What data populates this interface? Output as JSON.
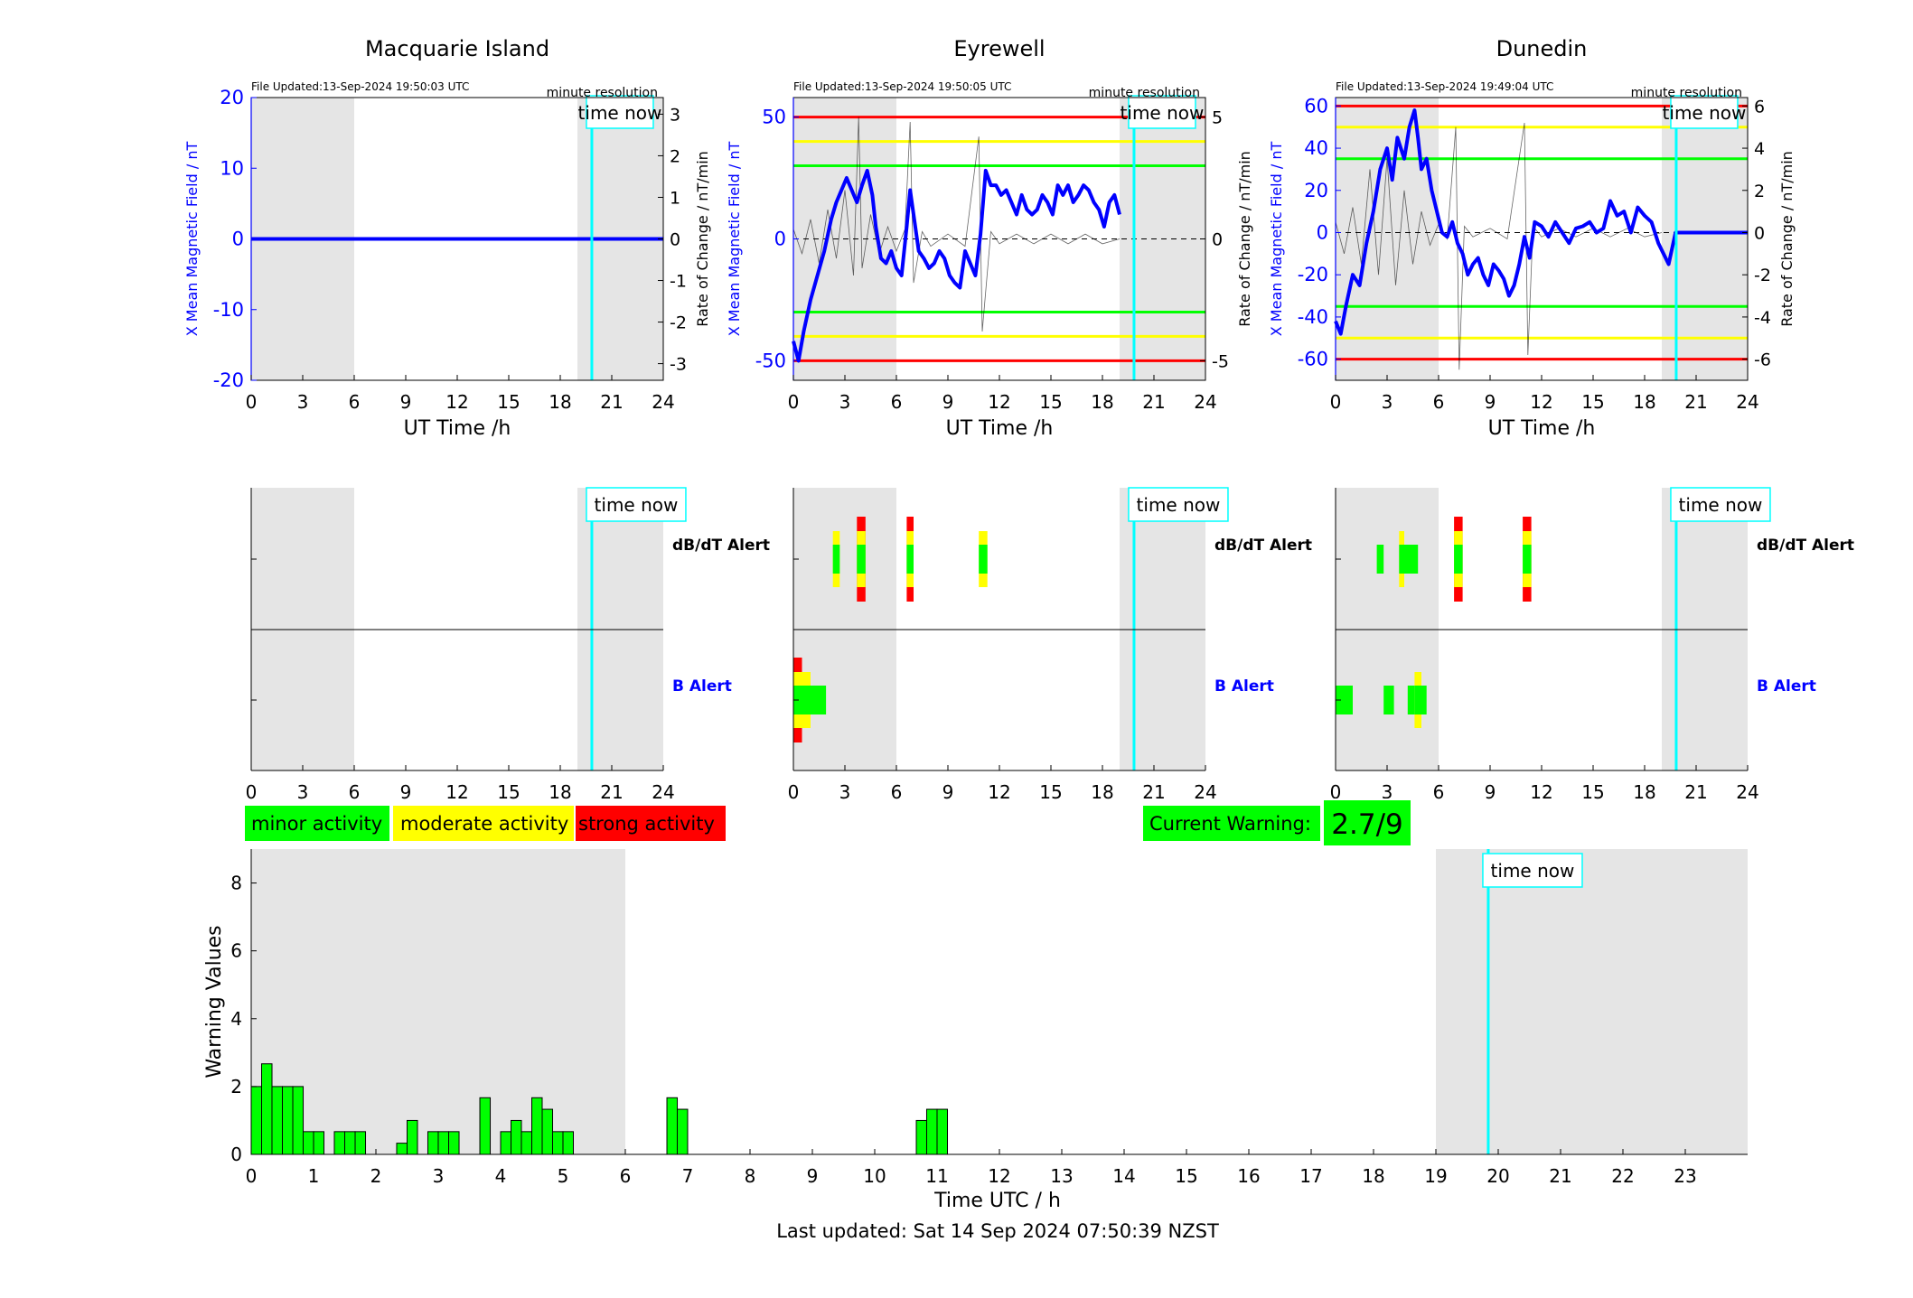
{
  "figure": {
    "footer": "Last updated: Sat 14 Sep 2024 07:50:39 NZST"
  },
  "legend": {
    "items": [
      {
        "label": "minor activity",
        "color": "#00ff00"
      },
      {
        "label": "moderate activity",
        "color": "#ffff00"
      },
      {
        "label": "strong activity",
        "color": "#ff0000"
      }
    ]
  },
  "current_warning": {
    "label": "Current Warning:",
    "value": "2.7/9",
    "color": "#00ff00"
  },
  "colors": {
    "shade": "#e5e5e5",
    "time_now": "#00ffff",
    "field_line": "#0000ff",
    "rate_line": "#000000",
    "threshold_minor": "#00ff00",
    "threshold_moderate": "#ffff00",
    "threshold_strong": "#ff0000",
    "b_alert_label": "#0000ff",
    "bar_fill": "#00ff00"
  },
  "chart_data": [
    {
      "type": "line",
      "station": "Macquarie Island",
      "file_updated": "File Updated:13-Sep-2024 19:50:03 UTC",
      "resolution": "minute resolution",
      "time_now_label": "time now",
      "time_now_hour": 19.84,
      "xlabel": "UT Time /h",
      "ylabel_left": "X Mean Magnetic Field / nT",
      "ylabel_right": "Rate of Change / nT/min",
      "xlim": [
        0,
        24
      ],
      "xticks": [
        0,
        3,
        6,
        9,
        12,
        15,
        18,
        21,
        24
      ],
      "ylim_left": [
        -20,
        20
      ],
      "yticks_left": [
        -20,
        -10,
        0,
        10,
        20
      ],
      "ylim_right": [
        -3.4,
        3.4
      ],
      "yticks_right": [
        -3,
        -2,
        -1,
        0,
        1,
        2,
        3
      ],
      "night_shading": [
        [
          0,
          6
        ],
        [
          19,
          24
        ]
      ],
      "thresholds": [],
      "field_series": {
        "x": [
          0,
          24
        ],
        "y": [
          0,
          0
        ]
      },
      "rate_series": {
        "x": [
          0,
          24
        ],
        "y": [
          0,
          0
        ]
      }
    },
    {
      "type": "line",
      "station": "Eyrewell",
      "file_updated": "File Updated:13-Sep-2024 19:50:05 UTC",
      "resolution": "minute resolution",
      "time_now_label": "time now",
      "time_now_hour": 19.84,
      "xlabel": "UT Time /h",
      "ylabel_left": "X Mean Magnetic Field / nT",
      "ylabel_right": "Rate of Change / nT/min",
      "xlim": [
        0,
        24
      ],
      "xticks": [
        0,
        3,
        6,
        9,
        12,
        15,
        18,
        21,
        24
      ],
      "ylim_left": [
        -58,
        58
      ],
      "yticks_left": [
        -50,
        0,
        50
      ],
      "ylim_right": [
        -5.8,
        5.8
      ],
      "yticks_right": [
        -5,
        0,
        5
      ],
      "night_shading": [
        [
          0,
          6
        ],
        [
          19,
          24
        ]
      ],
      "thresholds": [
        {
          "value": 50,
          "level": "strong"
        },
        {
          "value": -50,
          "level": "strong"
        },
        {
          "value": 40,
          "level": "moderate"
        },
        {
          "value": -40,
          "level": "moderate"
        },
        {
          "value": 30,
          "level": "minor"
        },
        {
          "value": -30,
          "level": "minor"
        }
      ],
      "field_series": {
        "x": [
          0,
          0.3,
          0.6,
          1.0,
          1.4,
          1.8,
          2.2,
          2.5,
          2.8,
          3.1,
          3.4,
          3.7,
          4.0,
          4.3,
          4.6,
          4.8,
          5.1,
          5.4,
          5.7,
          6.0,
          6.3,
          6.6,
          6.8,
          7.0,
          7.3,
          7.6,
          7.9,
          8.2,
          8.5,
          8.8,
          9.1,
          9.4,
          9.7,
          10.0,
          10.3,
          10.6,
          10.9,
          11.2,
          11.5,
          11.8,
          12.1,
          12.4,
          12.7,
          13.0,
          13.3,
          13.6,
          13.9,
          14.2,
          14.5,
          14.8,
          15.1,
          15.4,
          15.7,
          16.0,
          16.3,
          16.6,
          16.9,
          17.2,
          17.5,
          17.8,
          18.1,
          18.4,
          18.7,
          19.0
        ],
        "y": [
          -42,
          -50,
          -38,
          -25,
          -15,
          -5,
          8,
          15,
          20,
          25,
          20,
          15,
          22,
          28,
          18,
          5,
          -8,
          -10,
          -5,
          -12,
          -15,
          5,
          20,
          10,
          -5,
          -8,
          -12,
          -10,
          -5,
          -8,
          -15,
          -18,
          -20,
          -5,
          -10,
          -15,
          2,
          28,
          22,
          22,
          18,
          20,
          15,
          10,
          18,
          12,
          10,
          12,
          18,
          15,
          10,
          22,
          18,
          22,
          15,
          18,
          22,
          20,
          15,
          12,
          5,
          15,
          18,
          10
        ]
      },
      "rate_series": {
        "x": [
          0,
          0.5,
          1.0,
          1.5,
          2.0,
          2.5,
          3.0,
          3.5,
          3.8,
          4.0,
          4.5,
          5.0,
          5.5,
          6.0,
          6.5,
          6.8,
          7.0,
          7.5,
          8.0,
          9.0,
          10.0,
          10.8,
          11.0,
          11.5,
          12.0,
          13.0,
          14.0,
          15.0,
          16.0,
          17.0,
          18.0,
          19.0
        ],
        "y": [
          0.4,
          -0.6,
          0.8,
          -1.0,
          1.2,
          -0.8,
          2.0,
          -1.5,
          5.0,
          -1.2,
          1.0,
          -0.6,
          0.5,
          -0.5,
          0.4,
          4.8,
          -1.8,
          0.3,
          -0.3,
          0.2,
          -0.3,
          4.2,
          -3.8,
          0.3,
          -0.2,
          0.2,
          -0.2,
          0.2,
          -0.2,
          0.2,
          -0.2,
          0
        ]
      }
    },
    {
      "type": "line",
      "station": "Dunedin",
      "file_updated": "File Updated:13-Sep-2024 19:49:04 UTC",
      "resolution": "minute resolution",
      "time_now_label": "time now",
      "time_now_hour": 19.84,
      "xlabel": "UT Time /h",
      "ylabel_left": "X Mean Magnetic Field / nT",
      "ylabel_right": "Rate of Change / nT/min",
      "xlim": [
        0,
        24
      ],
      "xticks": [
        0,
        3,
        6,
        9,
        12,
        15,
        18,
        21,
        24
      ],
      "ylim_left": [
        -70,
        64
      ],
      "yticks_left": [
        -60,
        -40,
        -20,
        0,
        20,
        40,
        60
      ],
      "ylim_right": [
        -7,
        6.4
      ],
      "yticks_right": [
        -6,
        -4,
        -2,
        0,
        2,
        4,
        6
      ],
      "night_shading": [
        [
          0,
          6
        ],
        [
          19,
          24
        ]
      ],
      "thresholds": [
        {
          "value": 60,
          "level": "strong"
        },
        {
          "value": -60,
          "level": "strong"
        },
        {
          "value": 50,
          "level": "moderate"
        },
        {
          "value": -50,
          "level": "moderate"
        },
        {
          "value": 35,
          "level": "minor"
        },
        {
          "value": -35,
          "level": "minor"
        }
      ],
      "field_series": {
        "x": [
          0,
          0.3,
          0.6,
          1.0,
          1.4,
          1.8,
          2.2,
          2.6,
          3.0,
          3.3,
          3.6,
          4.0,
          4.3,
          4.6,
          4.8,
          5.0,
          5.3,
          5.6,
          5.9,
          6.2,
          6.5,
          6.8,
          7.1,
          7.4,
          7.7,
          8.0,
          8.3,
          8.6,
          8.9,
          9.2,
          9.5,
          9.8,
          10.1,
          10.4,
          10.7,
          11.0,
          11.3,
          11.6,
          12.0,
          12.4,
          12.8,
          13.2,
          13.6,
          14.0,
          14.4,
          14.8,
          15.2,
          15.6,
          16.0,
          16.4,
          16.8,
          17.2,
          17.6,
          18.0,
          18.4,
          18.8,
          19.1,
          19.4,
          19.8,
          24
        ],
        "y": [
          -42,
          -48,
          -35,
          -20,
          -25,
          -5,
          10,
          30,
          40,
          25,
          45,
          35,
          50,
          58,
          45,
          30,
          35,
          20,
          10,
          0,
          -2,
          5,
          -5,
          -10,
          -20,
          -15,
          -12,
          -20,
          -25,
          -15,
          -18,
          -22,
          -30,
          -25,
          -15,
          -2,
          -12,
          5,
          3,
          -2,
          5,
          0,
          -5,
          2,
          3,
          5,
          0,
          2,
          15,
          8,
          10,
          0,
          12,
          8,
          5,
          -5,
          -10,
          -15,
          0,
          0
        ]
      },
      "rate_series": {
        "x": [
          0,
          0.5,
          1.0,
          1.5,
          2.0,
          2.5,
          3.0,
          3.5,
          4.0,
          4.5,
          5.0,
          5.5,
          6.0,
          6.5,
          7.0,
          7.2,
          7.5,
          8.0,
          9.0,
          10.0,
          11.0,
          11.2,
          11.5,
          12.0,
          13.0,
          14.0,
          15.0,
          16.0,
          17.0,
          18.0,
          19.0
        ],
        "y": [
          0.5,
          -1.0,
          1.2,
          -1.5,
          3.0,
          -2.0,
          3.5,
          -2.5,
          2.0,
          -1.5,
          1.0,
          -0.6,
          0.4,
          -0.3,
          5.0,
          -6.5,
          0.3,
          -0.2,
          0.2,
          -0.3,
          5.2,
          -5.8,
          0.3,
          -0.2,
          0.2,
          -0.2,
          0.2,
          -0.2,
          0.2,
          -0.2,
          0
        ]
      }
    },
    {
      "type": "heatmap",
      "station": "Macquarie Island",
      "time_now_label": "time now",
      "time_now_hour": 19.84,
      "xlim": [
        0,
        24
      ],
      "xticks": [
        0,
        3,
        6,
        9,
        12,
        15,
        18,
        21,
        24
      ],
      "night_shading": [
        [
          0,
          6
        ],
        [
          19,
          24
        ]
      ],
      "rows": [
        {
          "label": "dB/dT Alert",
          "label_color": "#000000",
          "events": []
        },
        {
          "label": "B Alert",
          "label_color": "#0000ff",
          "events": []
        }
      ]
    },
    {
      "type": "heatmap",
      "station": "Eyrewell",
      "time_now_label": "time now",
      "time_now_hour": 19.84,
      "xlim": [
        0,
        24
      ],
      "xticks": [
        0,
        3,
        6,
        9,
        12,
        15,
        18,
        21,
        24
      ],
      "night_shading": [
        [
          0,
          6
        ],
        [
          19,
          24
        ]
      ],
      "rows": [
        {
          "label": "dB/dT Alert",
          "label_color": "#000000",
          "events": [
            {
              "start": 2.3,
              "end": 2.7,
              "level": 2
            },
            {
              "start": 3.7,
              "end": 4.2,
              "level": 3
            },
            {
              "start": 6.6,
              "end": 7.0,
              "level": 3
            },
            {
              "start": 10.8,
              "end": 11.3,
              "level": 2
            }
          ]
        },
        {
          "label": "B Alert",
          "label_color": "#0000ff",
          "events": [
            {
              "start": 0.0,
              "end": 0.5,
              "level": 3
            },
            {
              "start": 0.5,
              "end": 1.0,
              "level": 2
            },
            {
              "start": 1.0,
              "end": 1.9,
              "level": 1
            }
          ]
        }
      ]
    },
    {
      "type": "heatmap",
      "station": "Dunedin",
      "time_now_label": "time now",
      "time_now_hour": 19.84,
      "xlim": [
        0,
        24
      ],
      "xticks": [
        0,
        3,
        6,
        9,
        12,
        15,
        18,
        21,
        24
      ],
      "night_shading": [
        [
          0,
          6
        ],
        [
          19,
          24
        ]
      ],
      "rows": [
        {
          "label": "dB/dT Alert",
          "label_color": "#000000",
          "events": [
            {
              "start": 2.4,
              "end": 2.8,
              "level": 1
            },
            {
              "start": 3.7,
              "end": 4.0,
              "level": 2
            },
            {
              "start": 4.0,
              "end": 4.8,
              "level": 1
            },
            {
              "start": 6.9,
              "end": 7.4,
              "level": 3
            },
            {
              "start": 10.9,
              "end": 11.4,
              "level": 3
            }
          ]
        },
        {
          "label": "B Alert",
          "label_color": "#0000ff",
          "events": [
            {
              "start": 0.0,
              "end": 1.0,
              "level": 1
            },
            {
              "start": 2.8,
              "end": 3.4,
              "level": 1
            },
            {
              "start": 4.2,
              "end": 4.6,
              "level": 1
            },
            {
              "start": 4.6,
              "end": 5.0,
              "level": 2
            },
            {
              "start": 5.0,
              "end": 5.3,
              "level": 1
            }
          ]
        }
      ]
    },
    {
      "type": "bar",
      "time_now_label": "time now",
      "time_now_hour": 19.84,
      "xlabel": "Time UTC / h",
      "ylabel": "Warning Values",
      "xlim": [
        0,
        24
      ],
      "xticks": [
        0,
        1,
        2,
        3,
        4,
        5,
        6,
        7,
        8,
        9,
        10,
        11,
        12,
        13,
        14,
        15,
        16,
        17,
        18,
        19,
        20,
        21,
        22,
        23
      ],
      "ylim": [
        0,
        9
      ],
      "yticks": [
        0,
        2,
        4,
        6,
        8
      ],
      "night_shading": [
        [
          0,
          6
        ],
        [
          19,
          24
        ]
      ],
      "bar_width": 0.1667,
      "bars": [
        {
          "t": 0.0,
          "v": 2.0
        },
        {
          "t": 0.1667,
          "v": 2.67
        },
        {
          "t": 0.333,
          "v": 2.0
        },
        {
          "t": 0.5,
          "v": 2.0
        },
        {
          "t": 0.667,
          "v": 2.0
        },
        {
          "t": 0.833,
          "v": 0.67
        },
        {
          "t": 1.0,
          "v": 0.67
        },
        {
          "t": 1.333,
          "v": 0.67
        },
        {
          "t": 1.5,
          "v": 0.67
        },
        {
          "t": 1.667,
          "v": 0.67
        },
        {
          "t": 2.333,
          "v": 0.33
        },
        {
          "t": 2.5,
          "v": 1.0
        },
        {
          "t": 2.833,
          "v": 0.67
        },
        {
          "t": 3.0,
          "v": 0.67
        },
        {
          "t": 3.167,
          "v": 0.67
        },
        {
          "t": 3.667,
          "v": 1.67
        },
        {
          "t": 4.0,
          "v": 0.67
        },
        {
          "t": 4.167,
          "v": 1.0
        },
        {
          "t": 4.333,
          "v": 0.67
        },
        {
          "t": 4.5,
          "v": 1.67
        },
        {
          "t": 4.667,
          "v": 1.33
        },
        {
          "t": 4.833,
          "v": 0.67
        },
        {
          "t": 5.0,
          "v": 0.67
        },
        {
          "t": 6.667,
          "v": 1.67
        },
        {
          "t": 6.833,
          "v": 1.33
        },
        {
          "t": 10.667,
          "v": 1.0
        },
        {
          "t": 10.833,
          "v": 1.33
        },
        {
          "t": 11.0,
          "v": 1.33
        }
      ]
    }
  ]
}
